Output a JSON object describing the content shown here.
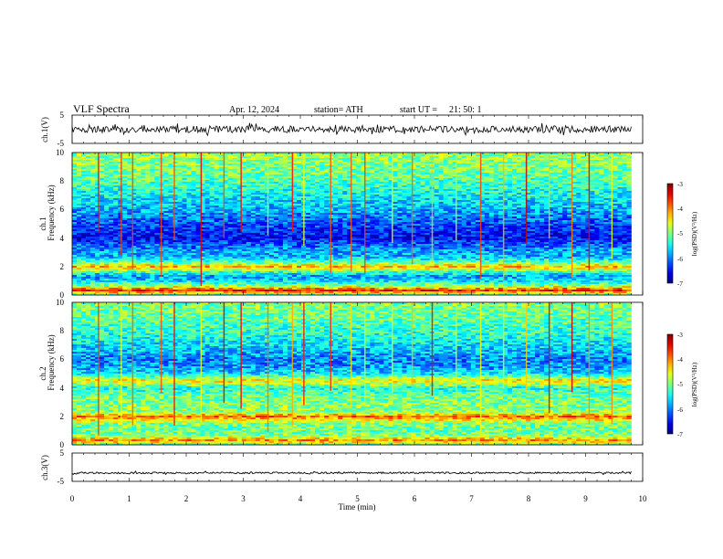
{
  "header": {
    "title": "VLF  Spectra",
    "date": "Apr. 12, 2024",
    "station": "station= ATH",
    "start_label": "start  UT  =",
    "start_time": "21: 50: 1"
  },
  "chart_data": [
    {
      "type": "line",
      "panel": "ch1-waveform",
      "ylabel": "ch.1(V)",
      "yticks": [
        "5",
        "-5"
      ],
      "ylim": [
        -5,
        5
      ],
      "xlim": [
        0,
        10
      ],
      "data_span_min": [
        0,
        9.8
      ],
      "approx_mean": 0,
      "approx_amplitude": 1.2
    },
    {
      "type": "heatmap",
      "panel": "ch1-spectrogram",
      "ylabel": "Frequency  (kHz)",
      "ylabel2": "ch.1",
      "yticks": [
        "0",
        "2",
        "4",
        "6",
        "8",
        "10"
      ],
      "ylim": [
        0,
        10
      ],
      "xlim": [
        0,
        10
      ],
      "data_span_min": [
        0,
        9.8
      ],
      "colorbar": {
        "label": "log(PSD)(V²/Hz)",
        "ticks": [
          "-3",
          "-4",
          "-5",
          "-6",
          "-7"
        ],
        "range": [
          -7,
          -3
        ]
      },
      "profile_khz_vs_logpsd": [
        [
          0.0,
          -5.5
        ],
        [
          0.3,
          -3.5
        ],
        [
          0.7,
          -5.0
        ],
        [
          1.0,
          -5.6
        ],
        [
          1.3,
          -5.9
        ],
        [
          1.6,
          -5.3
        ],
        [
          2.0,
          -4.2
        ],
        [
          2.3,
          -5.1
        ],
        [
          2.7,
          -5.8
        ],
        [
          3.0,
          -5.8
        ],
        [
          3.5,
          -6.1
        ],
        [
          4.0,
          -6.5
        ],
        [
          4.5,
          -6.4
        ],
        [
          5.0,
          -6.2
        ],
        [
          5.5,
          -6.0
        ],
        [
          6.0,
          -5.8
        ],
        [
          7.0,
          -5.5
        ],
        [
          8.0,
          -5.2
        ],
        [
          9.0,
          -5.0
        ],
        [
          10.0,
          -4.9
        ]
      ],
      "sferic_times_min": [
        0.45,
        0.85,
        1.05,
        1.55,
        1.78,
        2.25,
        2.65,
        2.95,
        3.42,
        3.85,
        4.05,
        4.52,
        4.88,
        5.12,
        5.6,
        5.95,
        6.3,
        6.72,
        7.15,
        7.55,
        7.95,
        8.35,
        8.75,
        9.05,
        9.45
      ]
    },
    {
      "type": "heatmap",
      "panel": "ch2-spectrogram",
      "ylabel": "Frequency  (kHz)",
      "ylabel2": "ch.2",
      "yticks": [
        "0",
        "2",
        "4",
        "6",
        "8",
        "10"
      ],
      "ylim": [
        0,
        10
      ],
      "xlim": [
        0,
        10
      ],
      "data_span_min": [
        0,
        9.8
      ],
      "colorbar": {
        "label": "log(PSD)(V²/Hz)",
        "ticks": [
          "-3",
          "-4",
          "-5",
          "-6",
          "-7"
        ],
        "range": [
          -7,
          -3
        ]
      },
      "profile_khz_vs_logpsd": [
        [
          0.0,
          -5.3
        ],
        [
          0.3,
          -4.0
        ],
        [
          0.7,
          -5.0
        ],
        [
          1.0,
          -5.1
        ],
        [
          1.5,
          -5.0
        ],
        [
          2.0,
          -3.9
        ],
        [
          2.3,
          -4.9
        ],
        [
          3.0,
          -5.0
        ],
        [
          3.5,
          -5.1
        ],
        [
          4.0,
          -5.4
        ],
        [
          4.5,
          -4.4
        ],
        [
          5.0,
          -5.6
        ],
        [
          5.5,
          -5.9
        ],
        [
          6.0,
          -6.0
        ],
        [
          7.0,
          -5.6
        ],
        [
          8.0,
          -5.3
        ],
        [
          9.0,
          -5.1
        ],
        [
          10.0,
          -5.0
        ]
      ],
      "sferic_times_min": [
        0.45,
        0.85,
        1.05,
        1.55,
        1.78,
        2.25,
        2.65,
        2.95,
        3.42,
        3.85,
        4.05,
        4.52,
        4.88,
        5.12,
        5.6,
        5.95,
        6.3,
        6.72,
        7.15,
        7.55,
        7.95,
        8.35,
        8.75,
        9.05,
        9.45
      ]
    },
    {
      "type": "line",
      "panel": "ch3-waveform",
      "ylabel": "ch.3(V)",
      "yticks": [
        "5",
        "-5"
      ],
      "ylim": [
        -5,
        5
      ],
      "xlim": [
        0,
        10
      ],
      "data_span_min": [
        0,
        9.8
      ],
      "approx_mean": -2,
      "approx_amplitude": 0.3,
      "xlabel": "Time  (min)",
      "xticks": [
        "0",
        "1",
        "2",
        "3",
        "4",
        "5",
        "6",
        "7",
        "8",
        "9",
        "10"
      ]
    }
  ]
}
